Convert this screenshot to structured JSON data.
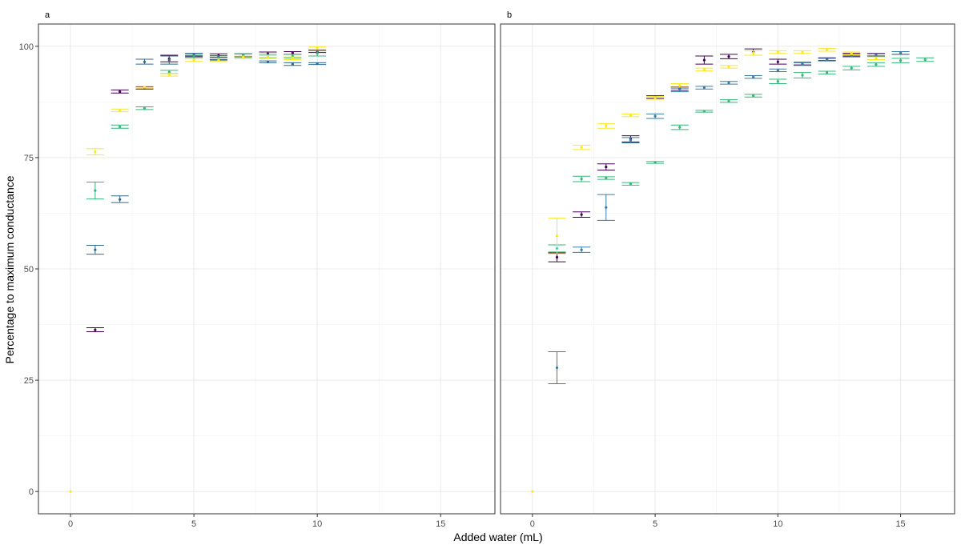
{
  "chart_data": {
    "type": "scatter",
    "xlabel": "Added water (mL)",
    "ylabel": "Percentage to maximum conductance",
    "xlim": [
      -1.3,
      17.2
    ],
    "ylim": [
      -5,
      105
    ],
    "x_ticks": [
      0,
      5,
      10,
      15
    ],
    "y_ticks": [
      0,
      25,
      50,
      75,
      100
    ],
    "grid": true,
    "colors": {
      "purple": "#440154",
      "dark_blue": "#31688e",
      "mid_blue": "#3a7ca8",
      "green": "#35b779",
      "yellow": "#fde725"
    },
    "panels": [
      {
        "tag": "a",
        "series": [
          {
            "color": "purple",
            "points": [
              {
                "x": 1,
                "y": 36.3,
                "lo": 35.9,
                "hi": 36.8
              },
              {
                "x": 2,
                "y": 89.8,
                "lo": 89.5,
                "hi": 90.2
              },
              {
                "x": 3,
                "y": 90.6,
                "lo": 90.4,
                "hi": 90.9
              },
              {
                "x": 4,
                "y": 97.2,
                "lo": 96.5,
                "hi": 98.0
              },
              {
                "x": 5,
                "y": 98.0,
                "lo": 97.6,
                "hi": 98.4
              },
              {
                "x": 6,
                "y": 97.9,
                "lo": 97.5,
                "hi": 98.3
              },
              {
                "x": 7,
                "y": 98.0,
                "lo": 97.7,
                "hi": 98.3
              },
              {
                "x": 8,
                "y": 98.3,
                "lo": 97.9,
                "hi": 98.7
              },
              {
                "x": 9,
                "y": 98.5,
                "lo": 98.2,
                "hi": 98.8
              },
              {
                "x": 10,
                "y": 98.9,
                "lo": 98.6,
                "hi": 99.2
              }
            ]
          },
          {
            "color": "dark_blue",
            "points": [
              {
                "x": 1,
                "y": 54.3,
                "lo": 53.3,
                "hi": 55.3
              },
              {
                "x": 2,
                "y": 65.6,
                "lo": 64.9,
                "hi": 66.4
              },
              {
                "x": 3,
                "y": 96.5,
                "lo": 96.0,
                "hi": 97.1
              },
              {
                "x": 4,
                "y": 96.9,
                "lo": 96.0,
                "hi": 97.8
              },
              {
                "x": 5,
                "y": 98.1,
                "lo": 97.8,
                "hi": 98.4
              },
              {
                "x": 6,
                "y": 97.4,
                "lo": 97.0,
                "hi": 97.9
              },
              {
                "x": 7,
                "y": 98.0,
                "lo": 97.7,
                "hi": 98.3
              },
              {
                "x": 8,
                "y": 96.5,
                "lo": 96.3,
                "hi": 96.7
              },
              {
                "x": 9,
                "y": 96.0,
                "lo": 95.7,
                "hi": 96.3
              },
              {
                "x": 10,
                "y": 96.1,
                "lo": 95.9,
                "hi": 96.3
              }
            ]
          },
          {
            "color": "green",
            "points": [
              {
                "x": 1,
                "y": 67.6,
                "lo": 65.7,
                "hi": 69.5
              },
              {
                "x": 2,
                "y": 81.9,
                "lo": 81.6,
                "hi": 82.3
              },
              {
                "x": 3,
                "y": 86.1,
                "lo": 85.8,
                "hi": 86.4
              },
              {
                "x": 4,
                "y": 94.2,
                "lo": 93.9,
                "hi": 94.6
              },
              {
                "x": 5,
                "y": 97.6,
                "lo": 97.2,
                "hi": 98.0
              },
              {
                "x": 6,
                "y": 97.2,
                "lo": 96.8,
                "hi": 97.6
              },
              {
                "x": 7,
                "y": 97.9,
                "lo": 97.5,
                "hi": 98.3
              },
              {
                "x": 8,
                "y": 97.8,
                "lo": 97.4,
                "hi": 98.2
              },
              {
                "x": 9,
                "y": 97.8,
                "lo": 97.4,
                "hi": 98.2
              },
              {
                "x": 10,
                "y": 98.4,
                "lo": 97.8,
                "hi": 99.0
              }
            ]
          },
          {
            "color": "yellow",
            "points": [
              {
                "x": 0,
                "y": 0,
                "lo": 0,
                "hi": 0
              },
              {
                "x": 1,
                "y": 76.3,
                "lo": 75.6,
                "hi": 77.0
              },
              {
                "x": 2,
                "y": 85.6,
                "lo": 85.3,
                "hi": 85.9
              },
              {
                "x": 3,
                "y": 90.8,
                "lo": 90.6,
                "hi": 91.0
              },
              {
                "x": 4,
                "y": 93.6,
                "lo": 93.3,
                "hi": 93.9
              },
              {
                "x": 5,
                "y": 96.9,
                "lo": 96.6,
                "hi": 97.2
              },
              {
                "x": 6,
                "y": 96.9,
                "lo": 96.6,
                "hi": 97.2
              },
              {
                "x": 7,
                "y": 97.5,
                "lo": 97.2,
                "hi": 97.8
              },
              {
                "x": 8,
                "y": 97.6,
                "lo": 97.3,
                "hi": 97.9
              },
              {
                "x": 9,
                "y": 97.3,
                "lo": 97.0,
                "hi": 97.6
              },
              {
                "x": 10,
                "y": 99.6,
                "lo": 99.3,
                "hi": 99.9
              }
            ]
          }
        ]
      },
      {
        "tag": "b",
        "series": [
          {
            "color": "purple",
            "points": [
              {
                "x": 1,
                "y": 52.6,
                "lo": 51.6,
                "hi": 53.6
              },
              {
                "x": 2,
                "y": 62.2,
                "lo": 61.6,
                "hi": 62.8
              },
              {
                "x": 3,
                "y": 72.9,
                "lo": 72.2,
                "hi": 73.6
              },
              {
                "x": 4,
                "y": 79.2,
                "lo": 78.5,
                "hi": 79.9
              },
              {
                "x": 5,
                "y": 88.6,
                "lo": 88.3,
                "hi": 88.9
              },
              {
                "x": 6,
                "y": 90.5,
                "lo": 90.1,
                "hi": 90.9
              },
              {
                "x": 7,
                "y": 96.9,
                "lo": 96.0,
                "hi": 97.8
              },
              {
                "x": 8,
                "y": 97.7,
                "lo": 97.2,
                "hi": 98.2
              },
              {
                "x": 9,
                "y": 98.7,
                "lo": 98.0,
                "hi": 99.4
              },
              {
                "x": 10,
                "y": 96.5,
                "lo": 96.0,
                "hi": 97.1
              },
              {
                "x": 11,
                "y": 96.1,
                "lo": 95.8,
                "hi": 96.4
              },
              {
                "x": 12,
                "y": 97.1,
                "lo": 96.8,
                "hi": 97.4
              },
              {
                "x": 13,
                "y": 98.1,
                "lo": 97.8,
                "hi": 98.4
              },
              {
                "x": 14,
                "y": 98.1,
                "lo": 97.8,
                "hi": 98.4
              },
              {
                "x": 15,
                "y": 98.5,
                "lo": 98.2,
                "hi": 98.8
              }
            ]
          },
          {
            "color": "mid_blue",
            "points": [
              {
                "x": 1,
                "y": 27.8,
                "lo": 24.2,
                "hi": 31.4
              },
              {
                "x": 2,
                "y": 54.3,
                "lo": 53.7,
                "hi": 54.9
              },
              {
                "x": 3,
                "y": 63.8,
                "lo": 60.9,
                "hi": 66.7
              },
              {
                "x": 4,
                "y": 78.9,
                "lo": 78.3,
                "hi": 79.5
              },
              {
                "x": 5,
                "y": 84.3,
                "lo": 83.8,
                "hi": 84.8
              },
              {
                "x": 6,
                "y": 90.2,
                "lo": 89.8,
                "hi": 90.6
              },
              {
                "x": 7,
                "y": 90.7,
                "lo": 90.4,
                "hi": 91.0
              },
              {
                "x": 8,
                "y": 91.8,
                "lo": 91.5,
                "hi": 92.1
              },
              {
                "x": 9,
                "y": 93.1,
                "lo": 92.8,
                "hi": 93.4
              },
              {
                "x": 10,
                "y": 94.6,
                "lo": 94.3,
                "hi": 94.9
              },
              {
                "x": 11,
                "y": 96.0,
                "lo": 95.7,
                "hi": 96.3
              },
              {
                "x": 12,
                "y": 97.0,
                "lo": 96.7,
                "hi": 97.3
              },
              {
                "x": 13,
                "y": 97.9,
                "lo": 97.6,
                "hi": 98.2
              },
              {
                "x": 14,
                "y": 98.0,
                "lo": 97.7,
                "hi": 98.3
              },
              {
                "x": 15,
                "y": 98.5,
                "lo": 98.2,
                "hi": 98.8
              }
            ]
          },
          {
            "color": "green",
            "points": [
              {
                "x": 1,
                "y": 54.6,
                "lo": 53.8,
                "hi": 55.4
              },
              {
                "x": 2,
                "y": 70.2,
                "lo": 69.6,
                "hi": 70.8
              },
              {
                "x": 3,
                "y": 70.4,
                "lo": 70.1,
                "hi": 70.7
              },
              {
                "x": 4,
                "y": 69.1,
                "lo": 68.8,
                "hi": 69.4
              },
              {
                "x": 5,
                "y": 73.9,
                "lo": 73.7,
                "hi": 74.1
              },
              {
                "x": 6,
                "y": 81.8,
                "lo": 81.3,
                "hi": 82.3
              },
              {
                "x": 7,
                "y": 85.4,
                "lo": 85.2,
                "hi": 85.6
              },
              {
                "x": 8,
                "y": 87.7,
                "lo": 87.4,
                "hi": 88.0
              },
              {
                "x": 9,
                "y": 88.9,
                "lo": 88.6,
                "hi": 89.2
              },
              {
                "x": 10,
                "y": 92.1,
                "lo": 91.6,
                "hi": 92.6
              },
              {
                "x": 11,
                "y": 93.5,
                "lo": 92.9,
                "hi": 94.1
              },
              {
                "x": 12,
                "y": 94.1,
                "lo": 93.8,
                "hi": 94.4
              },
              {
                "x": 13,
                "y": 95.1,
                "lo": 94.7,
                "hi": 95.5
              },
              {
                "x": 14,
                "y": 95.9,
                "lo": 95.5,
                "hi": 96.3
              },
              {
                "x": 15,
                "y": 96.8,
                "lo": 96.3,
                "hi": 97.3
              },
              {
                "x": 16,
                "y": 97.0,
                "lo": 96.6,
                "hi": 97.4
              }
            ]
          },
          {
            "color": "yellow",
            "points": [
              {
                "x": 0,
                "y": 0,
                "lo": 0,
                "hi": 0
              },
              {
                "x": 1,
                "y": 57.4,
                "lo": 53.4,
                "hi": 61.4
              },
              {
                "x": 2,
                "y": 77.3,
                "lo": 76.8,
                "hi": 77.8
              },
              {
                "x": 3,
                "y": 82.1,
                "lo": 81.6,
                "hi": 82.6
              },
              {
                "x": 4,
                "y": 84.5,
                "lo": 84.2,
                "hi": 84.8
              },
              {
                "x": 5,
                "y": 88.4,
                "lo": 88.1,
                "hi": 88.7
              },
              {
                "x": 6,
                "y": 91.2,
                "lo": 90.8,
                "hi": 91.6
              },
              {
                "x": 7,
                "y": 94.8,
                "lo": 94.5,
                "hi": 95.1
              },
              {
                "x": 8,
                "y": 95.4,
                "lo": 95.1,
                "hi": 95.7
              },
              {
                "x": 9,
                "y": 98.5,
                "lo": 98.0,
                "hi": 99.0
              },
              {
                "x": 10,
                "y": 98.7,
                "lo": 98.4,
                "hi": 99.0
              },
              {
                "x": 11,
                "y": 98.7,
                "lo": 98.4,
                "hi": 99.0
              },
              {
                "x": 12,
                "y": 99.2,
                "lo": 98.9,
                "hi": 99.5
              },
              {
                "x": 13,
                "y": 98.4,
                "lo": 98.1,
                "hi": 98.7
              },
              {
                "x": 14,
                "y": 97.3,
                "lo": 97.0,
                "hi": 97.6
              }
            ]
          }
        ]
      }
    ]
  }
}
